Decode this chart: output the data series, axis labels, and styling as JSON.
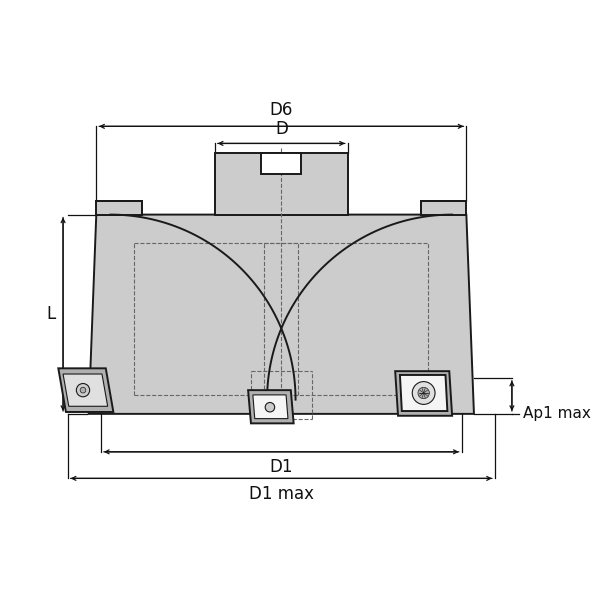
{
  "bg_color": "#ffffff",
  "line_color": "#1a1a1a",
  "fill_color": "#cccccc",
  "fill_dark": "#b0b0b0",
  "fill_light": "#e0e0e0",
  "fill_white": "#f5f5f5",
  "dashed_color": "#666666",
  "dim_color": "#111111",
  "labels": {
    "D6": "D6",
    "D": "D",
    "L": "L",
    "D1": "D1",
    "D1max": "D1 max",
    "Ap1max": "Ap1 max"
  },
  "figsize": [
    6.0,
    6.0
  ],
  "dpi": 100
}
